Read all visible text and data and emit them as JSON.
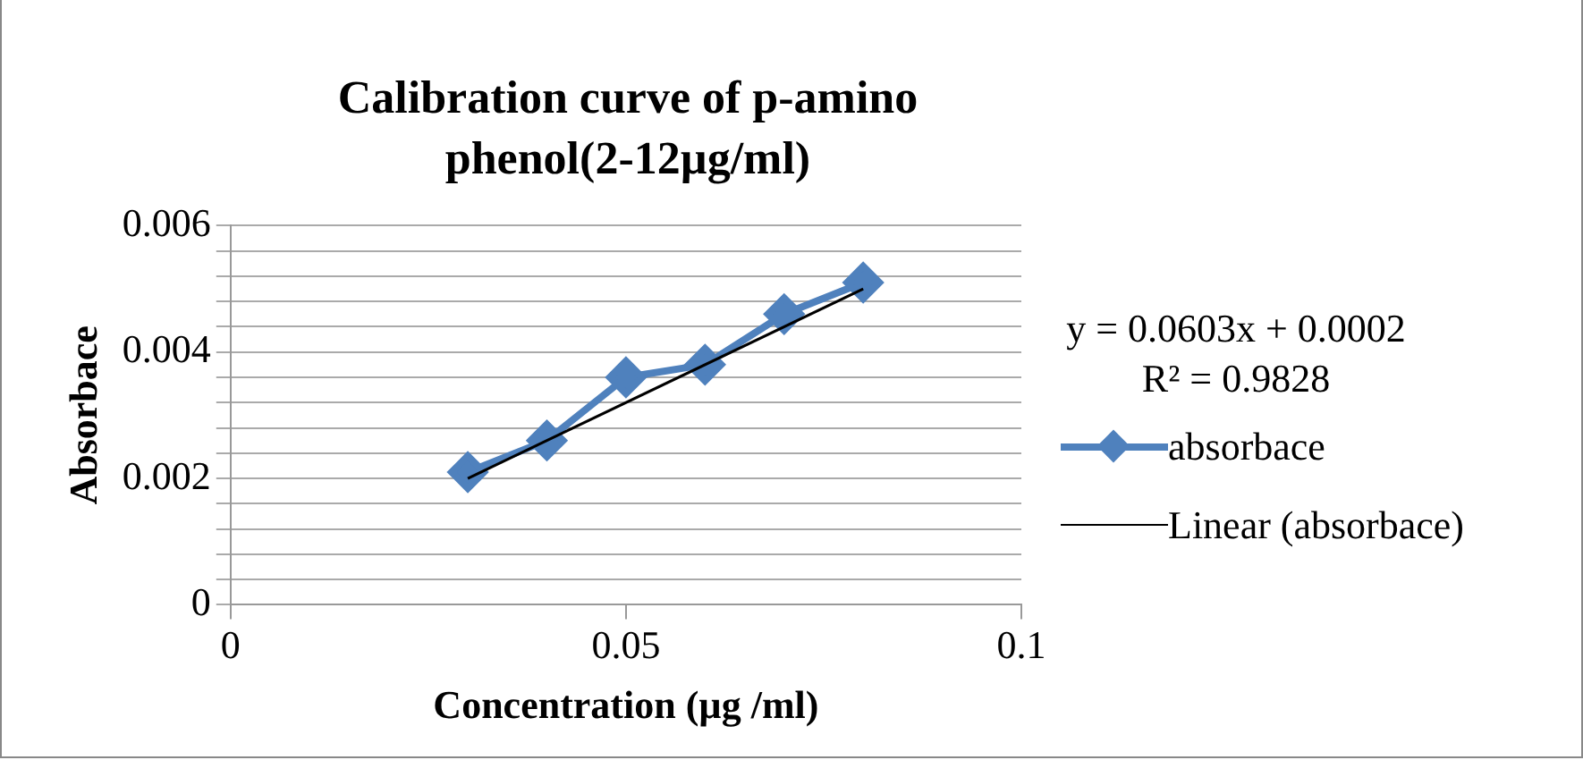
{
  "chart_data": {
    "type": "scatter",
    "title": "Calibration curve of p-amino phenol(2-12µg/ml)",
    "xlabel": "Concentration (µg /ml)",
    "ylabel": "Absorbace",
    "xlim": [
      0,
      0.1
    ],
    "xticks": [
      0,
      0.05,
      0.1
    ],
    "ylim": [
      0,
      0.006
    ],
    "yticks": [
      0,
      {
        "value": 0.0004,
        "label": null
      },
      {
        "value": 0.0008,
        "label": null
      },
      {
        "value": 0.0012,
        "label": null
      },
      {
        "value": 0.0016,
        "label": null
      },
      0.002,
      {
        "value": 0.0024,
        "label": null
      },
      {
        "value": 0.0028,
        "label": null
      },
      {
        "value": 0.0032,
        "label": null
      },
      {
        "value": 0.0036,
        "label": null
      },
      0.004,
      {
        "value": 0.0044,
        "label": null
      },
      {
        "value": 0.0048,
        "label": null
      },
      {
        "value": 0.0052,
        "label": null
      },
      {
        "value": 0.0056,
        "label": null
      },
      0.006
    ],
    "grid": "y",
    "legend": "right",
    "annotations": [
      "y = 0.0603x + 0.0002",
      "R² = 0.9828"
    ],
    "series": [
      {
        "name": "absorbace",
        "type": "line",
        "marker": "diamond",
        "color": "#4f81bd",
        "x": [
          0.03,
          0.04,
          0.05,
          0.06,
          0.07,
          0.08
        ],
        "values": [
          0.0021,
          0.0026,
          0.0036,
          0.0038,
          0.0046,
          0.0051
        ]
      },
      {
        "name": "Linear (absorbace)",
        "type": "line",
        "marker": "none",
        "color": "#000000",
        "x": [
          0.03,
          0.08
        ],
        "values": [
          0.002,
          0.005
        ]
      }
    ]
  }
}
